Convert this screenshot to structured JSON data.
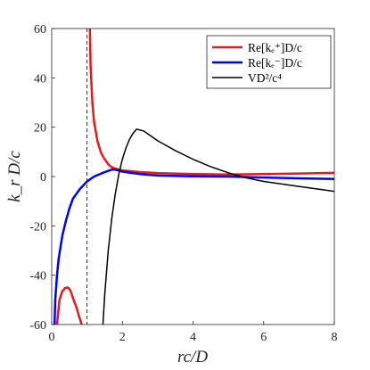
{
  "chart_data": {
    "type": "line",
    "title": "",
    "xlabel": "rc/D",
    "ylabel": "k_r D/c",
    "xlim": [
      0,
      8
    ],
    "ylim": [
      -60,
      60
    ],
    "xticks": [
      0,
      2,
      4,
      6,
      8
    ],
    "yticks": [
      -60,
      -40,
      -20,
      0,
      20,
      40,
      60
    ],
    "xtick_labels": [
      "0",
      "2",
      "4",
      "6",
      "8"
    ],
    "ytick_labels": [
      "-60",
      "-40",
      "-20",
      "0",
      "20",
      "40",
      "60"
    ],
    "grid": false,
    "legend_position": "top-right",
    "reference_line": {
      "x": 1,
      "style": "dashed"
    },
    "series": [
      {
        "name": "Re[k_r^+]D/c",
        "color": "#e41a1c",
        "segments": [
          {
            "x": [
              0.15,
              0.22,
              0.3,
              0.38,
              0.45,
              0.5,
              0.55,
              0.62,
              0.7,
              0.78,
              0.85
            ],
            "y": [
              -60,
              -50,
              -46.5,
              -45.2,
              -45,
              -45.5,
              -47,
              -50,
              -53,
              -57,
              -60
            ]
          },
          {
            "x": [
              1.08,
              1.1,
              1.15,
              1.2,
              1.3,
              1.4,
              1.5,
              1.6,
              1.7,
              1.8,
              2.0,
              2.5,
              3.0,
              4.0,
              5.0,
              6.0,
              7.0,
              8.0
            ],
            "y": [
              60,
              45,
              30,
              22,
              14,
              9.5,
              7,
              5,
              3.8,
              3.2,
              2.5,
              1.8,
              1.4,
              1.0,
              0.8,
              1.0,
              1.2,
              1.5
            ]
          }
        ]
      },
      {
        "name": "Re[k_r^-]D/c",
        "color": "#0000ff",
        "segments": [
          {
            "x": [
              0.08,
              0.1,
              0.15,
              0.2,
              0.3,
              0.4,
              0.5,
              0.6,
              0.8,
              1.0,
              1.2,
              1.5,
              1.7,
              1.8,
              2.0,
              2.5,
              3.0,
              4.0,
              5.0,
              6.0,
              7.0,
              8.0
            ],
            "y": [
              -60,
              -50,
              -40,
              -33,
              -24,
              -18,
              -13,
              -9,
              -5,
              -2,
              0,
              1.8,
              2.8,
              2.8,
              2.0,
              1.0,
              0.4,
              0.1,
              0,
              -0.4,
              -0.7,
              -1.0
            ]
          }
        ]
      },
      {
        "name": "V D^2/c^4",
        "color": "#000000",
        "segments": [
          {
            "x": [
              1.45,
              1.5,
              1.6,
              1.7,
              1.8,
              1.9,
              2.0,
              2.1,
              2.2,
              2.3,
              2.4,
              2.6,
              2.8,
              3.0,
              3.5,
              4.0,
              4.5,
              5.0,
              5.5,
              6.0,
              7.0,
              8.0
            ],
            "y": [
              -60,
              -48,
              -30,
              -17,
              -7,
              1,
              7,
              11.5,
              15,
              17.5,
              19.2,
              18.5,
              16.5,
              14.5,
              10.5,
              7,
              4,
              1.5,
              -0.5,
              -2,
              -4,
              -6
            ]
          }
        ]
      }
    ]
  },
  "legend": {
    "items": [
      {
        "key": "kr_plus",
        "label": "Re[kₑ⁺]D/c",
        "color": "#e41a1c"
      },
      {
        "key": "kr_minus",
        "label": "Re[kₑ⁻]D/c",
        "color": "#0000ff"
      },
      {
        "key": "v",
        "label": "VD²/c⁴",
        "color": "#000000"
      }
    ]
  }
}
